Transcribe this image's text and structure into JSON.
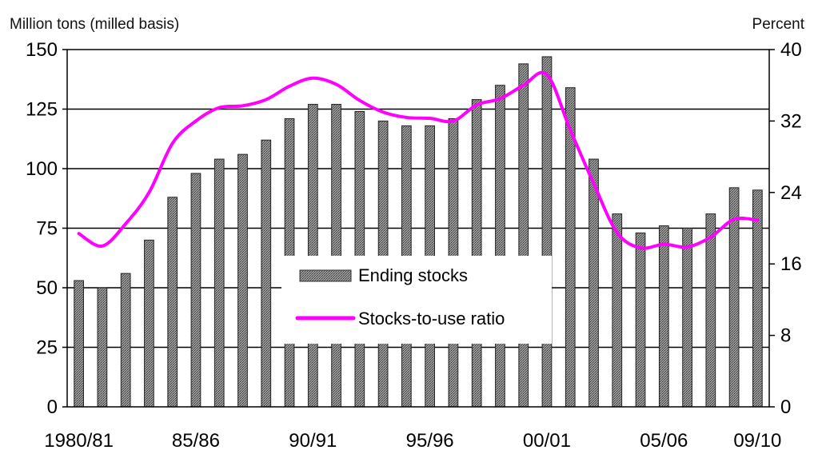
{
  "chart_data": {
    "type": "bar",
    "title": "",
    "ylabel": "Million tons (milled basis)",
    "ylabel_right": "Percent",
    "ylim": [
      0,
      150
    ],
    "y_ticks": [
      0,
      25,
      50,
      75,
      100,
      125,
      150
    ],
    "ylim_right": [
      0,
      40
    ],
    "y_ticks_right": [
      0,
      8,
      16,
      24,
      32,
      40
    ],
    "x_tick_labels": [
      {
        "label": "1980/81",
        "index": 0
      },
      {
        "label": "85/86",
        "index": 5
      },
      {
        "label": "90/91",
        "index": 10
      },
      {
        "label": "95/96",
        "index": 15
      },
      {
        "label": "00/01",
        "index": 20
      },
      {
        "label": "05/06",
        "index": 25
      },
      {
        "label": "09/10",
        "index": 29
      }
    ],
    "grid": "horizontal",
    "legend_position": "center",
    "series": [
      {
        "name": "Ending stocks",
        "type": "bar",
        "axis": "left",
        "color": "#7a7a7a",
        "values": [
          53,
          50,
          56,
          70,
          88,
          98,
          104,
          106,
          112,
          121,
          127,
          127,
          124,
          120,
          118,
          118,
          121,
          129,
          135,
          144,
          147,
          134,
          104,
          81,
          73,
          76,
          75,
          81,
          92,
          91
        ]
      },
      {
        "name": "Stocks-to-use ratio",
        "type": "line",
        "axis": "right",
        "color": "#ff00ff",
        "values": [
          19.4,
          18.0,
          20.5,
          24.0,
          29.5,
          32.0,
          33.5,
          33.7,
          34.4,
          35.9,
          36.8,
          36.1,
          34.3,
          33.0,
          32.4,
          32.3,
          32.0,
          33.8,
          34.5,
          36.0,
          37.2,
          31.0,
          25.0,
          19.5,
          17.8,
          18.2,
          17.9,
          19.0,
          21.0,
          20.9
        ]
      }
    ]
  }
}
